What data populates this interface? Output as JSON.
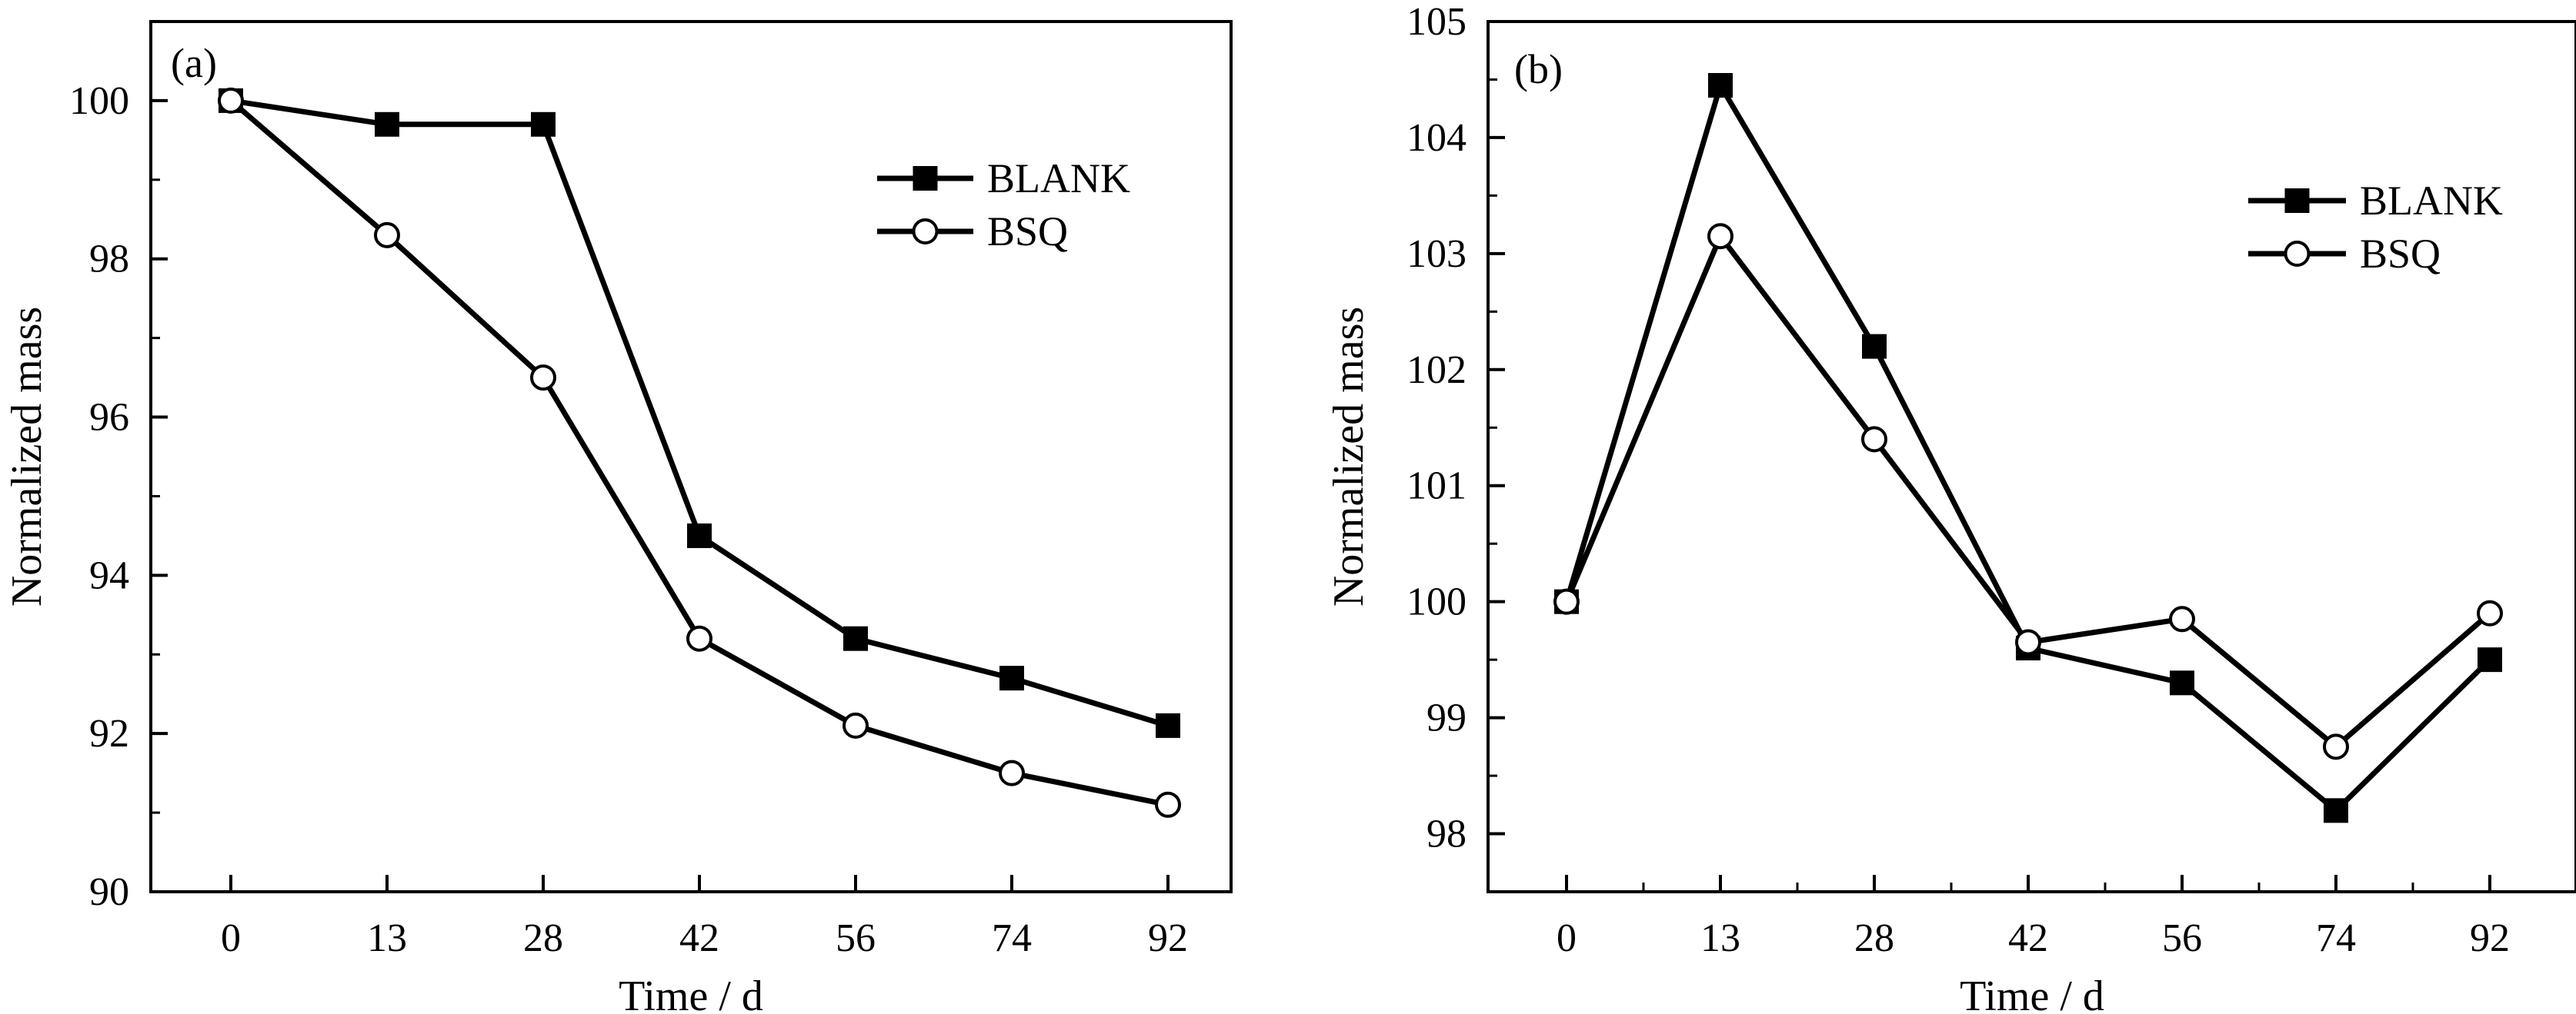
{
  "chart_data": [
    {
      "type": "line",
      "panel_label": "(a)",
      "title": "",
      "xlabel": "Time / d",
      "ylabel": "Normalized mass",
      "x": [
        0,
        13,
        28,
        42,
        56,
        74,
        92
      ],
      "x_tick_labels": [
        "0",
        "13",
        "28",
        "42",
        "56",
        "74",
        "92"
      ],
      "ylim": [
        90,
        101
      ],
      "y_ticks": [
        90,
        92,
        94,
        96,
        98,
        100
      ],
      "grid": false,
      "legend_position": "top-right",
      "series": [
        {
          "name": "BLANK",
          "marker": "filled-square",
          "values": [
            100.0,
            99.7,
            99.7,
            94.5,
            93.2,
            92.7,
            92.1
          ]
        },
        {
          "name": "BSQ",
          "marker": "open-circle",
          "values": [
            100.0,
            98.3,
            96.5,
            93.2,
            92.1,
            91.5,
            91.1
          ]
        }
      ]
    },
    {
      "type": "line",
      "panel_label": "(b)",
      "title": "",
      "xlabel": "Time / d",
      "ylabel": "Normalized mass",
      "x": [
        0,
        13,
        28,
        42,
        56,
        74,
        92
      ],
      "x_tick_labels": [
        "0",
        "13",
        "28",
        "42",
        "56",
        "74",
        "92"
      ],
      "ylim": [
        97.5,
        105
      ],
      "y_ticks": [
        98,
        99,
        100,
        101,
        102,
        103,
        104,
        105
      ],
      "grid": false,
      "legend_position": "top-right",
      "series": [
        {
          "name": "BLANK",
          "marker": "filled-square",
          "values": [
            100.0,
            104.45,
            102.2,
            99.6,
            99.3,
            98.2,
            99.5
          ]
        },
        {
          "name": "BSQ",
          "marker": "open-circle",
          "values": [
            100.0,
            103.15,
            101.4,
            99.65,
            99.85,
            98.75,
            99.9
          ]
        }
      ]
    }
  ],
  "style": {
    "line_color": "#000000",
    "marker_fill": "#000000",
    "open_marker_fill": "#ffffff",
    "background": "#ffffff"
  }
}
